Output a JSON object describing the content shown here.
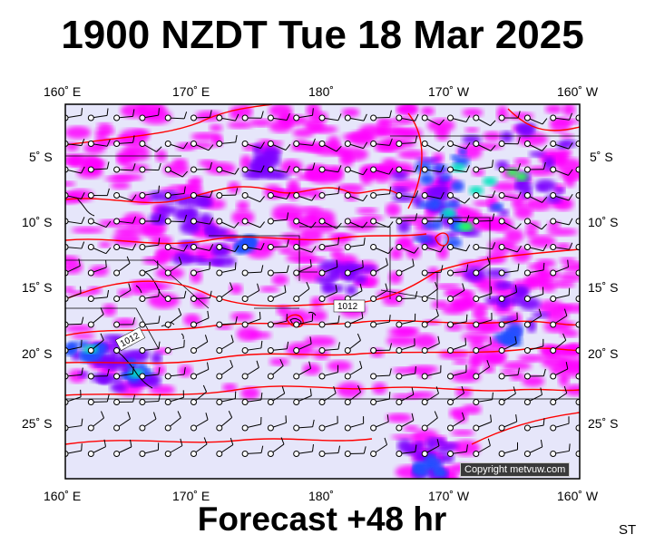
{
  "title": "1900 NZDT Tue 18 Mar 2025",
  "subtitle": "Forecast +48 hr",
  "corner_label": "ST",
  "copyright": "Copyright metvuw.com",
  "lon_labels": [
    "160˚ E",
    "170˚ E",
    "180˚",
    "170˚ W",
    "160˚ W"
  ],
  "lat_labels": [
    "5˚ S",
    "10˚ S",
    "15˚ S",
    "20˚ S",
    "25˚ S"
  ],
  "isobar_labels": [
    "1012",
    "1012"
  ],
  "colors": {
    "background_field": "#e6e6fa",
    "rain_light": "#ff00ff",
    "rain_moderate": "#7b00ff",
    "rain_heavy": "#2050ff",
    "rain_very_heavy": "#00e5c0",
    "rain_extreme": "#2aff50",
    "isobar": "#ff0000",
    "coast": "#000000"
  }
}
